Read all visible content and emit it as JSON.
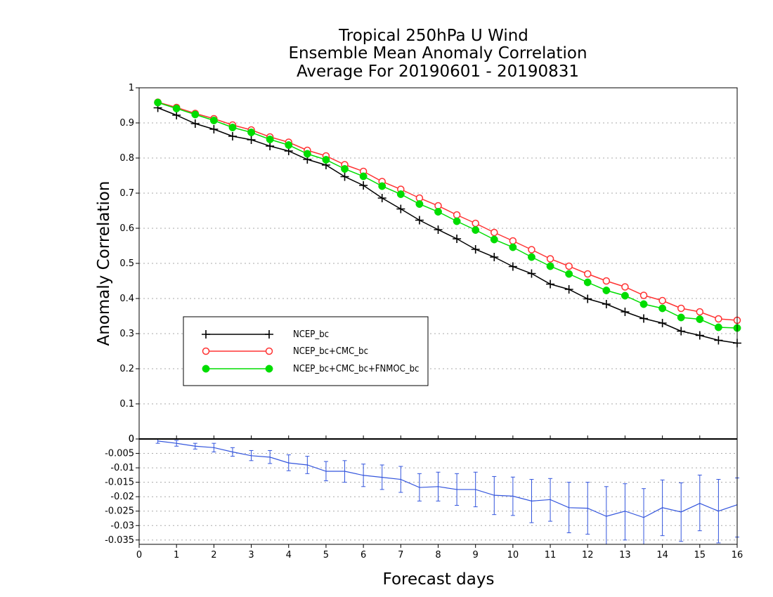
{
  "chart_data": [
    {
      "type": "line",
      "title": [
        "Tropical 250hPa U Wind",
        "Ensemble Mean Anomaly Correlation",
        "Average For 20190601 - 20190831"
      ],
      "ylabel": "Anomaly Correlation",
      "xlabel": "Forecast days",
      "xlim": [
        0,
        16
      ],
      "ylim": [
        0,
        1
      ],
      "x_ticks": [
        "0",
        "1",
        "2",
        "3",
        "4",
        "5",
        "6",
        "7",
        "8",
        "9",
        "10",
        "11",
        "12",
        "13",
        "14",
        "15",
        "16"
      ],
      "y_ticks": [
        "0",
        "0.1",
        "0.2",
        "0.3",
        "0.4",
        "0.5",
        "0.6",
        "0.7",
        "0.8",
        "0.9",
        "1"
      ],
      "grid": true,
      "legend_placement": "lower-left",
      "x": [
        0.5,
        1,
        1.5,
        2,
        2.5,
        3,
        3.5,
        4,
        4.5,
        5,
        5.5,
        6,
        6.5,
        7,
        7.5,
        8,
        8.5,
        9,
        9.5,
        10,
        10.5,
        11,
        11.5,
        12,
        12.5,
        13,
        13.5,
        14,
        14.5,
        15,
        15.5,
        16
      ],
      "series": [
        {
          "name": "NCEP_bc",
          "color": "#000000",
          "marker": "plus",
          "values": [
            0.943,
            0.922,
            0.898,
            0.882,
            0.862,
            0.852,
            0.834,
            0.82,
            0.796,
            0.78,
            0.747,
            0.722,
            0.686,
            0.655,
            0.623,
            0.596,
            0.57,
            0.54,
            0.518,
            0.491,
            0.471,
            0.441,
            0.426,
            0.399,
            0.384,
            0.362,
            0.343,
            0.33,
            0.307,
            0.295,
            0.281,
            0.273
          ]
        },
        {
          "name": "NCEP_bc+CMC_bc",
          "color": "#ff3333",
          "marker": "open-circle",
          "values": [
            0.959,
            0.944,
            0.927,
            0.912,
            0.894,
            0.88,
            0.86,
            0.845,
            0.822,
            0.806,
            0.781,
            0.762,
            0.733,
            0.711,
            0.686,
            0.664,
            0.638,
            0.614,
            0.588,
            0.564,
            0.539,
            0.513,
            0.492,
            0.47,
            0.45,
            0.433,
            0.409,
            0.394,
            0.372,
            0.362,
            0.342,
            0.338
          ]
        },
        {
          "name": "NCEP_bc+CMC_bc+FNMOC_bc",
          "color": "#00dd00",
          "marker": "filled-circle",
          "values": [
            0.958,
            0.941,
            0.924,
            0.907,
            0.887,
            0.873,
            0.853,
            0.837,
            0.812,
            0.795,
            0.769,
            0.748,
            0.72,
            0.697,
            0.669,
            0.647,
            0.62,
            0.595,
            0.568,
            0.546,
            0.518,
            0.492,
            0.47,
            0.446,
            0.423,
            0.408,
            0.384,
            0.372,
            0.346,
            0.341,
            0.318,
            0.316
          ]
        }
      ]
    },
    {
      "type": "line",
      "xlabel": "Forecast days",
      "xlim": [
        0,
        16
      ],
      "ylim": [
        -0.0365,
        0
      ],
      "x_ticks": [
        "0",
        "1",
        "2",
        "3",
        "4",
        "5",
        "6",
        "7",
        "8",
        "9",
        "10",
        "11",
        "12",
        "13",
        "14",
        "15",
        "16"
      ],
      "y_ticks": [
        "0",
        "-0.005",
        "-0.01",
        "-0.015",
        "-0.02",
        "-0.025",
        "-0.03",
        "-0.035"
      ],
      "grid": true,
      "x": [
        0.5,
        1,
        1.5,
        2,
        2.5,
        3,
        3.5,
        4,
        4.5,
        5,
        5.5,
        6,
        6.5,
        7,
        7.5,
        8,
        8.5,
        9,
        9.5,
        10,
        10.5,
        11,
        11.5,
        12,
        12.5,
        13,
        13.5,
        14,
        14.5,
        15,
        15.5,
        16
      ],
      "series": [
        {
          "color": "#3355dd",
          "values": [
            -0.0007,
            -0.0015,
            -0.0025,
            -0.003,
            -0.0045,
            -0.0058,
            -0.0063,
            -0.0083,
            -0.009,
            -0.0112,
            -0.0112,
            -0.0126,
            -0.0133,
            -0.014,
            -0.0168,
            -0.0165,
            -0.0175,
            -0.0175,
            -0.0195,
            -0.0198,
            -0.0215,
            -0.021,
            -0.0238,
            -0.024,
            -0.0268,
            -0.025,
            -0.0272,
            -0.0238,
            -0.0253,
            -0.0223,
            -0.025,
            -0.0228
          ],
          "err_low": [
            -0.0015,
            -0.0025,
            -0.0035,
            -0.0045,
            -0.006,
            -0.0075,
            -0.0085,
            -0.011,
            -0.012,
            -0.0145,
            -0.015,
            -0.0165,
            -0.0175,
            -0.0185,
            -0.0215,
            -0.0215,
            -0.023,
            -0.0235,
            -0.0262,
            -0.0265,
            -0.029,
            -0.0285,
            -0.0325,
            -0.033,
            -0.037,
            -0.035,
            -0.037,
            -0.0335,
            -0.0355,
            -0.0318,
            -0.036,
            -0.034
          ],
          "err_high": [
            0,
            -0.0005,
            -0.0015,
            -0.0015,
            -0.003,
            -0.004,
            -0.004,
            -0.0055,
            -0.006,
            -0.0078,
            -0.0075,
            -0.0087,
            -0.009,
            -0.0095,
            -0.012,
            -0.0115,
            -0.012,
            -0.0115,
            -0.013,
            -0.0132,
            -0.014,
            -0.0137,
            -0.015,
            -0.015,
            -0.0165,
            -0.0155,
            -0.0172,
            -0.0142,
            -0.0152,
            -0.0125,
            -0.014,
            -0.0135
          ]
        }
      ]
    }
  ]
}
